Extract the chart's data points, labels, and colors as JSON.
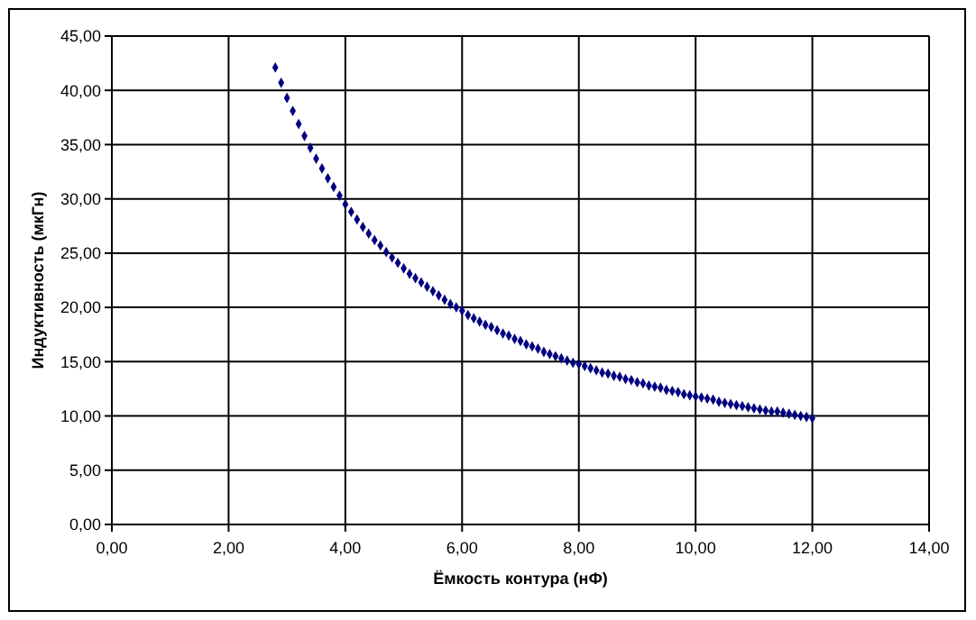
{
  "chart_data": {
    "type": "scatter",
    "xlabel": "Ёмкость контура (нФ)",
    "ylabel": "Индуктивность (мкГн)",
    "marker": "diamond",
    "grid": true,
    "xlim": [
      0,
      14
    ],
    "xticks": [
      {
        "value": 0,
        "label": "0,00"
      },
      {
        "value": 2,
        "label": "2,00"
      },
      {
        "value": 4,
        "label": "4,00"
      },
      {
        "value": 6,
        "label": "6,00"
      },
      {
        "value": 8,
        "label": "8,00"
      },
      {
        "value": 10,
        "label": "10,00"
      },
      {
        "value": 12,
        "label": "12,00"
      },
      {
        "value": 14,
        "label": "14,00"
      }
    ],
    "ylim": [
      0,
      45
    ],
    "yticks": [
      {
        "value": 0,
        "label": "0,00"
      },
      {
        "value": 5,
        "label": "5,00"
      },
      {
        "value": 10,
        "label": "10,00"
      },
      {
        "value": 15,
        "label": "15,00"
      },
      {
        "value": 20,
        "label": "20,00"
      },
      {
        "value": 25,
        "label": "25,00"
      },
      {
        "value": 30,
        "label": "30,00"
      },
      {
        "value": 35,
        "label": "35,00"
      },
      {
        "value": 40,
        "label": "40,00"
      },
      {
        "value": 45,
        "label": "45,00"
      }
    ],
    "x": [
      2.8,
      2.9,
      3.0,
      3.1,
      3.2,
      3.3,
      3.4,
      3.5,
      3.6,
      3.7,
      3.8,
      3.9,
      4.0,
      4.1,
      4.2,
      4.3,
      4.4,
      4.5,
      4.6,
      4.7,
      4.8,
      4.9,
      5.0,
      5.1,
      5.2,
      5.3,
      5.4,
      5.5,
      5.6,
      5.7,
      5.8,
      5.9,
      6.0,
      6.1,
      6.2,
      6.3,
      6.4,
      6.5,
      6.6,
      6.7,
      6.8,
      6.9,
      7.0,
      7.1,
      7.2,
      7.3,
      7.4,
      7.5,
      7.6,
      7.7,
      7.8,
      7.9,
      8.0,
      8.1,
      8.2,
      8.3,
      8.4,
      8.5,
      8.6,
      8.7,
      8.8,
      8.9,
      9.0,
      9.1,
      9.2,
      9.3,
      9.4,
      9.5,
      9.6,
      9.7,
      9.8,
      9.9,
      10.0,
      10.1,
      10.2,
      10.3,
      10.4,
      10.5,
      10.6,
      10.7,
      10.8,
      10.9,
      11.0,
      11.1,
      11.2,
      11.3,
      11.4,
      11.5,
      11.6,
      11.7,
      11.8,
      11.9,
      12.0
    ],
    "series": [
      {
        "color": "#000080",
        "values": [
          42.1,
          40.7,
          39.3,
          38.1,
          36.9,
          35.8,
          34.7,
          33.7,
          32.8,
          31.9,
          31.1,
          30.3,
          29.5,
          28.8,
          28.1,
          27.4,
          26.8,
          26.2,
          25.7,
          25.1,
          24.6,
          24.1,
          23.6,
          23.1,
          22.7,
          22.3,
          21.9,
          21.5,
          21.1,
          20.7,
          20.3,
          20.0,
          19.7,
          19.3,
          19.0,
          18.7,
          18.4,
          18.2,
          17.9,
          17.6,
          17.4,
          17.1,
          16.9,
          16.6,
          16.4,
          16.2,
          15.9,
          15.7,
          15.5,
          15.3,
          15.1,
          14.9,
          14.8,
          14.6,
          14.4,
          14.2,
          14.0,
          13.9,
          13.7,
          13.6,
          13.4,
          13.3,
          13.1,
          13.0,
          12.8,
          12.7,
          12.6,
          12.4,
          12.3,
          12.2,
          12.0,
          11.9,
          11.8,
          11.7,
          11.6,
          11.5,
          11.3,
          11.2,
          11.1,
          11.0,
          10.9,
          10.8,
          10.7,
          10.6,
          10.5,
          10.4,
          10.4,
          10.3,
          10.2,
          10.1,
          10.0,
          9.9,
          9.8
        ]
      }
    ]
  }
}
